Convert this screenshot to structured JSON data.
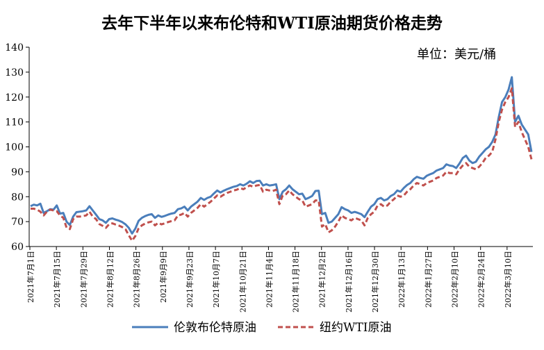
{
  "title": "去年下半年以来布伦特和WTI原油期货价格走势",
  "unit": "单位：美元/桶",
  "chart_data": {
    "type": "line",
    "ylim": [
      60,
      140
    ],
    "yticks": [
      60,
      70,
      80,
      90,
      100,
      110,
      120,
      130,
      140
    ],
    "grid": false,
    "legend_position": "bottom",
    "x_tick_labels": [
      "2021年7月1日",
      "2021年7月15日",
      "2021年7月29日",
      "2021年8月12日",
      "2021年8月26日",
      "2021年9月9日",
      "2021年9月23日",
      "2021年10月7日",
      "2021年10月21日",
      "2021年11月4日",
      "2021年11月18日",
      "2021年12月2日",
      "2021年12月16日",
      "2021年12月30日",
      "2022年1月13日",
      "2022年1月27日",
      "2022年2月10日",
      "2022年2月24日",
      "2022年3月10日"
    ],
    "series": [
      {
        "name": "伦敦布伦特原油",
        "color": "#4a7ebb",
        "values": [
          76.2,
          76.8,
          76.5,
          77.2,
          73.5,
          74.2,
          75.0,
          74.8,
          76.5,
          73.2,
          73.5,
          70.0,
          68.6,
          72.0,
          73.8,
          74.0,
          74.2,
          74.5,
          76.2,
          74.5,
          72.8,
          71.0,
          70.5,
          69.5,
          71.0,
          71.3,
          70.8,
          70.4,
          69.8,
          68.9,
          67.5,
          65.2,
          67.2,
          70.3,
          71.5,
          72.2,
          72.7,
          73.0,
          71.5,
          72.5,
          71.9,
          72.3,
          72.8,
          73.2,
          73.5,
          75.0,
          75.3,
          76.0,
          74.5,
          76.0,
          77.0,
          78.0,
          79.5,
          78.7,
          79.5,
          80.0,
          81.3,
          82.5,
          81.7,
          82.4,
          83.0,
          83.5,
          84.0,
          84.3,
          85.0,
          84.5,
          85.2,
          86.2,
          85.5,
          86.3,
          86.4,
          84.5,
          85.0,
          84.5,
          84.7,
          85.0,
          79.0,
          82.0,
          83.0,
          84.5,
          83.0,
          82.0,
          81.0,
          81.2,
          79.0,
          79.6,
          80.3,
          82.3,
          82.4,
          73.0,
          73.5,
          69.5,
          70.0,
          71.5,
          73.0,
          75.8,
          75.0,
          74.5,
          73.5,
          73.9,
          73.5,
          73.0,
          71.8,
          74.0,
          76.0,
          77.0,
          79.0,
          79.5,
          78.5,
          79.0,
          80.3,
          81.0,
          82.5,
          82.0,
          83.5,
          84.7,
          85.5,
          87.0,
          88.0,
          87.5,
          87.2,
          88.4,
          89.0,
          89.5,
          90.5,
          91.0,
          91.5,
          93.0,
          92.5,
          92.3,
          91.5,
          93.3,
          95.5,
          96.5,
          94.5,
          93.5,
          94.0,
          96.0,
          97.5,
          99.0,
          100.0,
          102.0,
          105.0,
          112.0,
          118.0,
          120.0,
          123.0,
          128.0,
          110.0,
          112.5,
          109.0,
          107.0,
          105.0,
          98.0
        ]
      },
      {
        "name": "纽约WTI原油",
        "color": "#c0504d",
        "values": [
          75.2,
          75.2,
          74.8,
          74.0,
          72.5,
          74.0,
          74.8,
          74.5,
          74.2,
          72.5,
          71.5,
          67.6,
          67.0,
          71.0,
          72.0,
          72.0,
          72.2,
          72.5,
          74.0,
          72.0,
          71.0,
          69.0,
          68.3,
          67.5,
          69.0,
          69.3,
          68.8,
          68.4,
          67.8,
          66.9,
          64.5,
          62.3,
          64.2,
          67.3,
          68.5,
          69.2,
          69.7,
          70.0,
          68.5,
          69.5,
          68.9,
          69.3,
          69.8,
          70.2,
          70.5,
          72.5,
          72.8,
          73.5,
          72.0,
          73.5,
          74.5,
          75.5,
          77.0,
          76.0,
          77.0,
          78.0,
          79.3,
          80.5,
          80.0,
          80.8,
          81.5,
          82.0,
          82.5,
          82.8,
          83.5,
          83.0,
          83.8,
          84.5,
          84.0,
          84.5,
          84.7,
          82.0,
          82.8,
          82.5,
          82.3,
          82.8,
          77.0,
          80.5,
          81.0,
          82.5,
          81.0,
          80.0,
          79.0,
          78.5,
          76.0,
          76.5,
          77.0,
          78.5,
          78.5,
          68.0,
          69.0,
          65.7,
          66.5,
          68.0,
          70.0,
          72.5,
          71.5,
          71.0,
          70.5,
          71.5,
          71.0,
          70.5,
          68.5,
          71.5,
          73.0,
          74.0,
          76.5,
          77.0,
          76.0,
          76.5,
          78.0,
          79.0,
          80.5,
          80.0,
          80.5,
          82.0,
          83.0,
          84.5,
          85.5,
          85.0,
          84.5,
          85.5,
          86.0,
          86.5,
          87.5,
          88.0,
          88.5,
          90.0,
          89.5,
          89.5,
          89.0,
          91.0,
          92.5,
          93.5,
          92.0,
          91.5,
          91.0,
          92.0,
          93.5,
          95.5,
          96.5,
          98.0,
          103.0,
          110.0,
          115.0,
          118.0,
          120.0,
          123.5,
          108.0,
          110.0,
          106.0,
          103.0,
          100.0,
          95.0
        ]
      }
    ]
  }
}
